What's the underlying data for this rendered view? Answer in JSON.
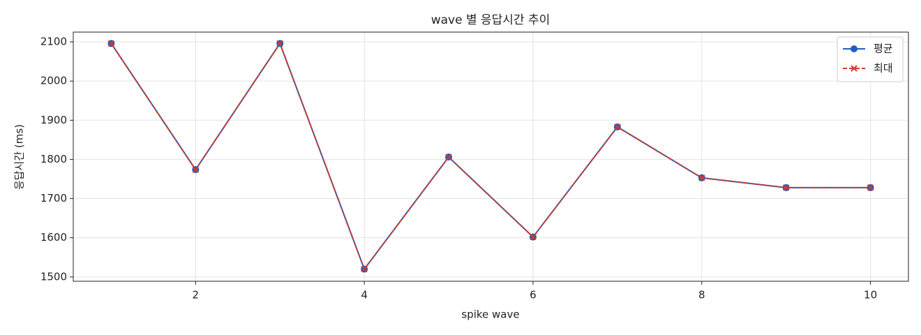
{
  "chart_data": {
    "type": "line",
    "title": "wave 별 응답시간 추이",
    "x_label": "spike wave",
    "y_label": "응답시간 (ms)",
    "x": [
      1,
      2,
      3,
      4,
      5,
      6,
      7,
      8,
      9,
      10
    ],
    "series": [
      {
        "name": "평균",
        "color": "#1f5fbf",
        "marker": "circle",
        "dash": false,
        "values": [
          2096,
          1774,
          2096,
          1520,
          1806,
          1602,
          1883,
          1753,
          1728,
          1728
        ]
      },
      {
        "name": "최대",
        "color": "#d03a2f",
        "marker": "x",
        "dash": true,
        "values": [
          2096,
          1774,
          2096,
          1520,
          1806,
          1602,
          1883,
          1753,
          1728,
          1728
        ]
      }
    ],
    "xlim": [
      0.55,
      10.45
    ],
    "ylim": [
      1489,
      2125
    ],
    "xticks": [
      2,
      4,
      6,
      8,
      10
    ],
    "yticks": [
      1500,
      1600,
      1700,
      1800,
      1900,
      2000,
      2100
    ],
    "grid": true,
    "legend": "upper right"
  }
}
